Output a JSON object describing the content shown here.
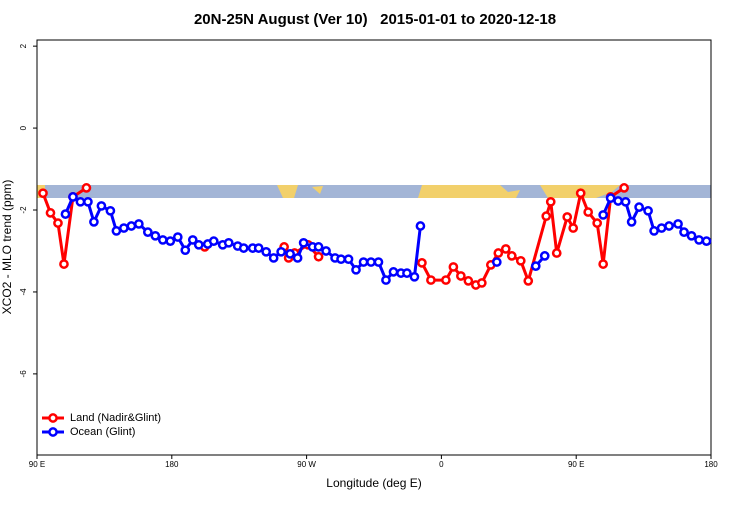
{
  "chart_data": {
    "type": "line",
    "title": "20N-25N August (Ver 10)   2015-01-01 to 2020-12-18",
    "x_label": "Longitude (deg E)",
    "y_label": "XCO2 - MLO trend (ppm)",
    "xlim": [
      90,
      540
    ],
    "xticks": [
      {
        "value": 90,
        "label": "90 E"
      },
      180,
      {
        "value": 270,
        "label": "90 W"
      },
      {
        "value": 360,
        "label": "0"
      },
      {
        "value": 450,
        "label": "90 E"
      },
      {
        "value": 540,
        "label": "180"
      }
    ],
    "ylim": [
      -7.98,
      2.15
    ],
    "yticks": [
      2,
      0,
      -2,
      -4,
      -6
    ],
    "legend": "bottom-left",
    "series": [
      {
        "name": "Land (Nadir&Glint)",
        "color": "#ff0000",
        "x": [
          94,
          99,
          104,
          108,
          114,
          123,
          null,
          202,
          null,
          255,
          258,
          262,
          271,
          278,
          null,
          347,
          353,
          363,
          368,
          373,
          378,
          383,
          387,
          393,
          398,
          403,
          407,
          413,
          418,
          430,
          433,
          437,
          444,
          448,
          453,
          458,
          464,
          468,
          473,
          482
        ],
        "values": [
          -1.59,
          -2.07,
          -2.32,
          -3.32,
          -1.68,
          -1.46,
          null,
          -2.9,
          null,
          -2.9,
          -3.17,
          -3.05,
          -2.85,
          -3.14,
          null,
          -3.29,
          -3.71,
          -3.71,
          -3.39,
          -3.61,
          -3.73,
          -3.83,
          -3.78,
          -3.34,
          -3.05,
          -2.95,
          -3.12,
          -3.24,
          -3.73,
          -2.15,
          -1.8,
          -3.05,
          -2.17,
          -2.44,
          -1.59,
          -2.05,
          -2.32,
          -3.32,
          -1.68,
          -1.46
        ]
      },
      {
        "name": "Ocean (Glint)",
        "color": "#0000ff",
        "x": [
          109,
          114,
          119,
          124,
          128,
          133,
          139,
          143,
          148,
          153,
          158,
          164,
          169,
          174,
          179,
          184,
          189,
          194,
          198,
          204,
          208,
          214,
          218,
          224,
          228,
          234,
          238,
          243,
          248,
          253,
          259,
          264,
          268,
          274,
          278,
          283,
          289,
          293,
          298,
          303,
          308,
          313,
          318,
          323,
          328,
          333,
          337,
          342,
          346,
          null,
          397,
          null,
          423,
          429,
          null,
          468,
          473,
          478,
          483,
          487,
          492,
          498,
          502,
          507,
          512,
          518,
          522,
          527,
          532,
          537
        ],
        "values": [
          -2.1,
          -1.68,
          -1.8,
          -1.8,
          -2.29,
          -1.9,
          -2.02,
          -2.51,
          -2.44,
          -2.39,
          -2.34,
          -2.54,
          -2.63,
          -2.73,
          -2.76,
          -2.66,
          -2.98,
          -2.73,
          -2.85,
          -2.83,
          -2.76,
          -2.85,
          -2.8,
          -2.88,
          -2.93,
          -2.93,
          -2.93,
          -3.02,
          -3.17,
          -3.02,
          -3.07,
          -3.17,
          -2.8,
          -2.9,
          -2.9,
          -3.0,
          -3.17,
          -3.2,
          -3.2,
          -3.46,
          -3.27,
          -3.27,
          -3.27,
          -3.71,
          -3.51,
          -3.54,
          -3.54,
          -3.63,
          -2.39,
          null,
          -3.27,
          null,
          -3.37,
          -3.12,
          null,
          -2.12,
          -1.71,
          -1.78,
          -1.8,
          -2.29,
          -1.93,
          -2.02,
          -2.51,
          -2.44,
          -2.39,
          -2.34,
          -2.54,
          -2.63,
          -2.73,
          -2.76
        ]
      }
    ]
  }
}
